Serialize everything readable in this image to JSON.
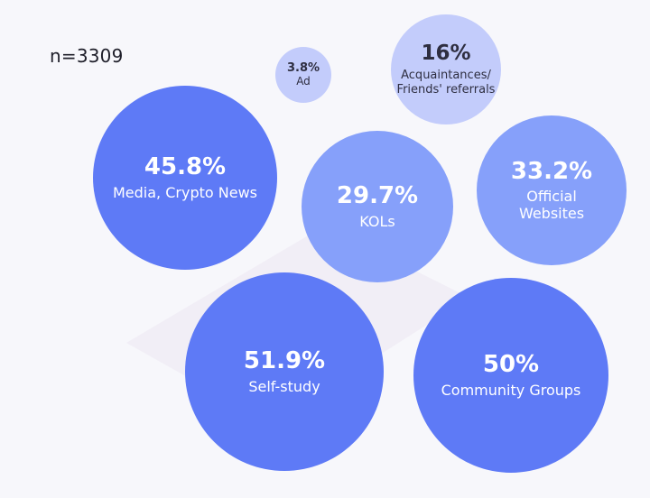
{
  "sample_size": "n=3309",
  "colors": {
    "background": "#f7f7fb",
    "strong": "#5e7af6",
    "medium": "#86a0fa",
    "light": "#c3ccfb"
  },
  "chart_data": {
    "type": "bubble",
    "title": "",
    "unit": "%",
    "items": [
      {
        "label": "Ad",
        "value": 3.8,
        "display": "3.8%"
      },
      {
        "label": "Acquaintances/ Friends' referrals",
        "line1": "Acquaintances/",
        "line2": "Friends' referrals",
        "value": 16,
        "display": "16%"
      },
      {
        "label": "Media, Crypto News",
        "value": 45.8,
        "display": "45.8%"
      },
      {
        "label": "KOLs",
        "value": 29.7,
        "display": "29.7%"
      },
      {
        "label": "Official Websites",
        "line1": "Official",
        "line2": "Websites",
        "value": 33.2,
        "display": "33.2%"
      },
      {
        "label": "Self-study",
        "value": 51.9,
        "display": "51.9%"
      },
      {
        "label": "Community Groups",
        "value": 50,
        "display": "50%"
      }
    ]
  }
}
